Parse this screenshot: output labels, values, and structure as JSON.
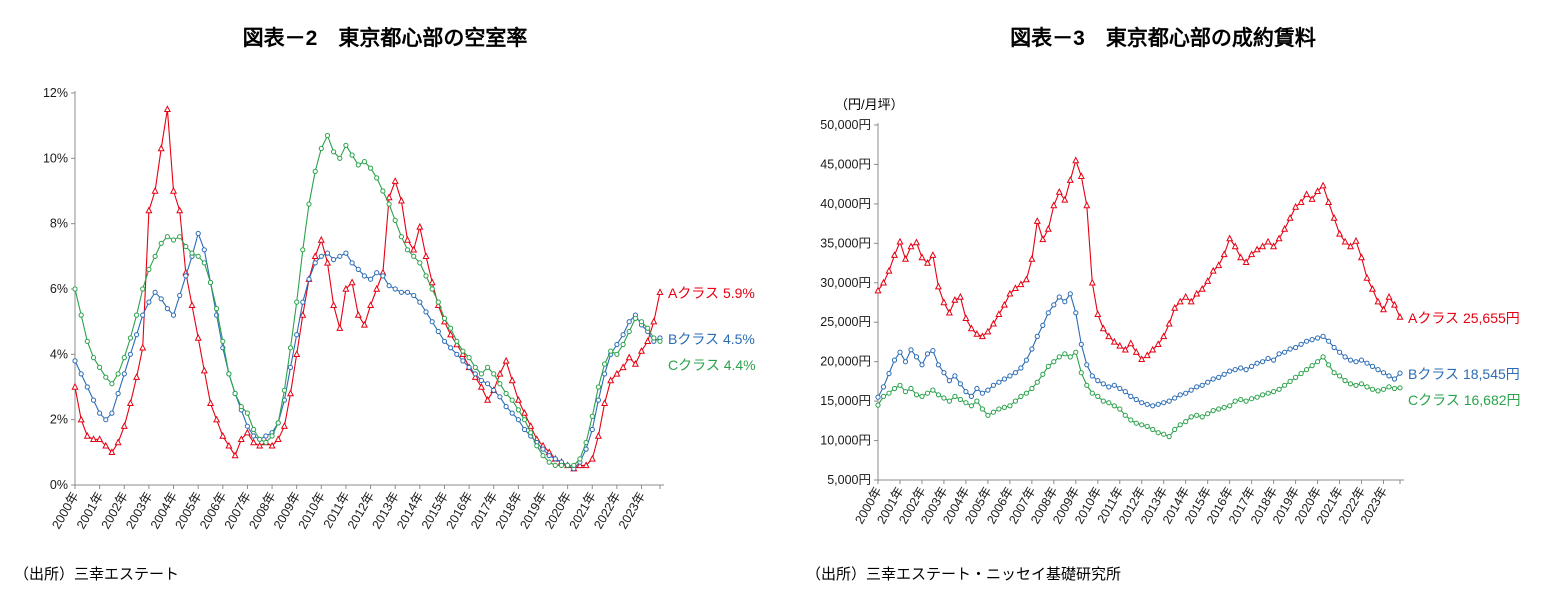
{
  "chart_data": [
    {
      "type": "line",
      "title": "図表－2　東京都心部の空室率",
      "source": "（出所）三幸エステート",
      "categories": [
        "2000年",
        "2001年",
        "2002年",
        "2003年",
        "2004年",
        "2005年",
        "2006年",
        "2007年",
        "2008年",
        "2009年",
        "2010年",
        "2011年",
        "2012年",
        "2013年",
        "2014年",
        "2015年",
        "2016年",
        "2017年",
        "2018年",
        "2019年",
        "2020年",
        "2021年",
        "2022年",
        "2023年"
      ],
      "points_per_year": 4,
      "ylim": [
        0,
        12
      ],
      "y_tick_step": 2,
      "y_tick_labels": [
        "0%",
        "2%",
        "4%",
        "6%",
        "8%",
        "10%",
        "12%"
      ],
      "grid": false,
      "legend_position": "right",
      "series": [
        {
          "name": "Aクラス",
          "label": "Aクラス 5.9%",
          "color": "#e60012",
          "marker": "triangle",
          "values": [
            3.0,
            2.0,
            1.5,
            1.4,
            1.4,
            1.2,
            1.0,
            1.3,
            1.8,
            2.5,
            3.3,
            4.2,
            8.4,
            9.0,
            10.3,
            11.5,
            9.0,
            8.4,
            6.5,
            5.5,
            4.5,
            3.5,
            2.5,
            2.0,
            1.5,
            1.2,
            0.9,
            1.4,
            1.6,
            1.3,
            1.2,
            1.3,
            1.2,
            1.4,
            1.8,
            2.8,
            4.0,
            5.2,
            6.3,
            7.0,
            7.5,
            6.8,
            5.5,
            4.8,
            6.0,
            6.2,
            5.2,
            4.9,
            5.5,
            6.0,
            6.5,
            8.8,
            9.3,
            8.7,
            7.5,
            7.2,
            7.9,
            7.0,
            6.2,
            5.5,
            5.0,
            4.6,
            4.3,
            4.0,
            3.6,
            3.3,
            3.0,
            2.6,
            2.9,
            3.4,
            3.8,
            3.2,
            2.6,
            2.2,
            1.8,
            1.4,
            1.2,
            1.0,
            0.8,
            0.7,
            0.6,
            0.5,
            0.6,
            0.6,
            0.8,
            1.5,
            2.5,
            3.2,
            3.4,
            3.6,
            3.9,
            3.7,
            4.1,
            4.4,
            5.0,
            5.9
          ]
        },
        {
          "name": "Bクラス",
          "label": "Bクラス 4.5%",
          "color": "#2b6cb5",
          "marker": "circle",
          "values": [
            3.8,
            3.4,
            3.0,
            2.6,
            2.2,
            2.0,
            2.2,
            2.8,
            3.4,
            4.0,
            4.6,
            5.2,
            5.6,
            5.9,
            5.7,
            5.4,
            5.2,
            5.8,
            6.4,
            7.0,
            7.7,
            7.2,
            6.2,
            5.2,
            4.2,
            3.4,
            2.8,
            2.3,
            1.8,
            1.5,
            1.4,
            1.5,
            1.6,
            1.9,
            2.6,
            3.6,
            4.6,
            5.6,
            6.3,
            6.8,
            7.0,
            7.1,
            6.9,
            7.0,
            7.1,
            6.8,
            6.6,
            6.4,
            6.3,
            6.5,
            6.4,
            6.1,
            6.0,
            5.9,
            5.9,
            5.8,
            5.6,
            5.3,
            5.0,
            4.7,
            4.4,
            4.2,
            4.0,
            3.8,
            3.6,
            3.4,
            3.2,
            3.1,
            2.9,
            2.7,
            2.4,
            2.2,
            2.0,
            1.7,
            1.5,
            1.3,
            1.1,
            0.9,
            0.8,
            0.7,
            0.6,
            0.5,
            0.7,
            1.1,
            1.7,
            2.6,
            3.4,
            4.0,
            4.3,
            4.6,
            5.0,
            5.2,
            4.9,
            4.7,
            4.4,
            4.5
          ]
        },
        {
          "name": "Cクラス",
          "label": "Cクラス 4.4%",
          "color": "#2ba24c",
          "marker": "circle",
          "values": [
            6.0,
            5.2,
            4.4,
            3.9,
            3.6,
            3.3,
            3.1,
            3.4,
            3.9,
            4.5,
            5.2,
            6.0,
            6.6,
            7.0,
            7.4,
            7.6,
            7.5,
            7.6,
            7.3,
            7.1,
            7.0,
            6.8,
            6.2,
            5.4,
            4.4,
            3.4,
            2.8,
            2.4,
            2.2,
            1.7,
            1.4,
            1.3,
            1.5,
            1.9,
            2.9,
            4.2,
            5.6,
            7.2,
            8.6,
            9.6,
            10.3,
            10.7,
            10.2,
            10.0,
            10.4,
            10.1,
            9.8,
            9.9,
            9.7,
            9.4,
            9.0,
            8.6,
            8.1,
            7.6,
            7.2,
            7.0,
            6.8,
            6.4,
            6.0,
            5.6,
            5.1,
            4.8,
            4.4,
            4.1,
            3.9,
            3.6,
            3.4,
            3.6,
            3.4,
            3.1,
            2.8,
            2.6,
            2.3,
            2.0,
            1.6,
            1.2,
            0.9,
            0.7,
            0.6,
            0.6,
            0.6,
            0.6,
            0.8,
            1.3,
            2.1,
            3.0,
            3.7,
            4.1,
            4.0,
            4.3,
            4.7,
            5.1,
            5.0,
            4.8,
            4.5,
            4.4
          ]
        }
      ]
    },
    {
      "type": "line",
      "title": "図表－3　東京都心部の成約賃料",
      "y_axis_unit": "（円/月坪）",
      "source": "（出所）三幸エステート・ニッセイ基礎研究所",
      "categories": [
        "2000年",
        "2001年",
        "2002年",
        "2003年",
        "2004年",
        "2005年",
        "2006年",
        "2007年",
        "2008年",
        "2009年",
        "2010年",
        "2011年",
        "2012年",
        "2013年",
        "2014年",
        "2015年",
        "2016年",
        "2017年",
        "2018年",
        "2019年",
        "2020年",
        "2021年",
        "2022年",
        "2023年"
      ],
      "points_per_year": 4,
      "ylim": [
        5000,
        50000
      ],
      "y_tick_step": 5000,
      "y_tick_labels": [
        "5,000円",
        "10,000円",
        "15,000円",
        "20,000円",
        "25,000円",
        "30,000円",
        "35,000円",
        "40,000円",
        "45,000円",
        "50,000円"
      ],
      "grid": false,
      "legend_position": "right",
      "series": [
        {
          "name": "Aクラス",
          "label": "Aクラス 25,655円",
          "color": "#e60012",
          "marker": "triangle",
          "values": [
            29000,
            30000,
            31500,
            33500,
            35200,
            33000,
            34600,
            35100,
            33200,
            32500,
            33500,
            29500,
            27500,
            26200,
            27800,
            28200,
            25500,
            24200,
            23500,
            23200,
            23800,
            24800,
            26000,
            27200,
            28600,
            29300,
            29800,
            30400,
            33000,
            37800,
            35500,
            36800,
            39800,
            41500,
            40500,
            43000,
            45500,
            43500,
            39800,
            30000,
            26000,
            24200,
            23200,
            22500,
            22000,
            21500,
            22300,
            21200,
            20300,
            20800,
            21500,
            22200,
            23200,
            24800,
            26800,
            27600,
            28200,
            27600,
            28600,
            29200,
            30200,
            31500,
            32200,
            33600,
            35600,
            34600,
            33200,
            32600,
            33600,
            34200,
            34600,
            35200,
            34600,
            35600,
            36800,
            38200,
            39600,
            40200,
            41200,
            40600,
            41600,
            42300,
            40200,
            38200,
            36200,
            35200,
            34600,
            35300,
            33200,
            30600,
            29200,
            27600,
            26600,
            28200,
            27200,
            25655
          ]
        },
        {
          "name": "Bクラス",
          "label": "Bクラス 18,545円",
          "color": "#2b6cb5",
          "marker": "circle",
          "values": [
            15500,
            16800,
            18500,
            20200,
            21200,
            20000,
            21500,
            20600,
            19600,
            21000,
            21400,
            19600,
            18600,
            17600,
            18200,
            17200,
            16200,
            15600,
            16600,
            16000,
            16400,
            17000,
            17400,
            17800,
            18200,
            18600,
            19200,
            20200,
            21600,
            23200,
            24600,
            26200,
            27200,
            28200,
            27600,
            28600,
            26200,
            22200,
            19600,
            18200,
            17600,
            17200,
            16800,
            17000,
            16600,
            16200,
            15600,
            15200,
            14800,
            14600,
            14400,
            14600,
            14800,
            15000,
            15400,
            15800,
            16000,
            16400,
            16800,
            17000,
            17400,
            17800,
            18000,
            18400,
            18800,
            19000,
            19200,
            19000,
            19400,
            19800,
            20000,
            20400,
            20200,
            21000,
            21200,
            21600,
            21800,
            22200,
            22600,
            22800,
            23000,
            23200,
            22600,
            21800,
            21200,
            20600,
            20200,
            20000,
            20200,
            19800,
            19400,
            19000,
            18600,
            18200,
            17800,
            18545
          ]
        },
        {
          "name": "Cクラス",
          "label": "Cクラス 16,682円",
          "color": "#2ba24c",
          "marker": "circle",
          "values": [
            14500,
            15600,
            16000,
            16600,
            17000,
            16200,
            16600,
            15800,
            15600,
            16000,
            16400,
            15800,
            15400,
            15000,
            15600,
            15200,
            14800,
            14400,
            15000,
            14000,
            13200,
            13600,
            14000,
            14200,
            14400,
            15000,
            15600,
            16000,
            16600,
            17400,
            18400,
            19400,
            20000,
            20600,
            21000,
            20600,
            21200,
            18600,
            17000,
            16000,
            15600,
            15000,
            14800,
            14400,
            14000,
            13200,
            12600,
            12200,
            12000,
            11800,
            11400,
            11000,
            10800,
            10500,
            11400,
            12000,
            12400,
            13000,
            13200,
            13000,
            13400,
            13800,
            14000,
            14200,
            14400,
            15000,
            15200,
            15000,
            15300,
            15500,
            15800,
            16000,
            16200,
            16500,
            17000,
            17500,
            18000,
            18500,
            19000,
            19500,
            20000,
            20600,
            19600,
            18600,
            18200,
            17600,
            17200,
            17000,
            17200,
            16800,
            16500,
            16300,
            16500,
            16800,
            16600,
            16682
          ]
        }
      ]
    }
  ]
}
